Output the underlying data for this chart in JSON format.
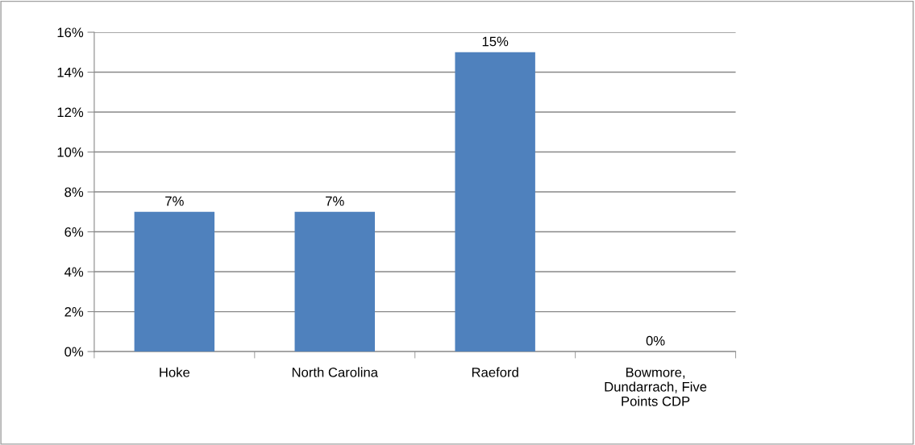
{
  "chart_data": {
    "type": "bar",
    "categories": [
      "Hoke",
      "North Carolina",
      "Raeford",
      "Bowmore, Dundarrach, Five Points CDP"
    ],
    "values": [
      7,
      7,
      15,
      0
    ],
    "color": "#4f81bd",
    "value_labels": [
      "7%",
      "7%",
      "15%",
      "0%"
    ],
    "ylim": [
      0,
      16
    ],
    "yticks": [
      {
        "value": 0,
        "label": "0%"
      },
      {
        "value": 2,
        "label": "2%"
      },
      {
        "value": 4,
        "label": "4%"
      },
      {
        "value": 6,
        "label": "6%"
      },
      {
        "value": 8,
        "label": "8%"
      },
      {
        "value": 10,
        "label": "10%"
      },
      {
        "value": 12,
        "label": "12%"
      },
      {
        "value": 14,
        "label": "14%"
      },
      {
        "value": 16,
        "label": "16%"
      }
    ],
    "grid": "y",
    "legend": false
  }
}
